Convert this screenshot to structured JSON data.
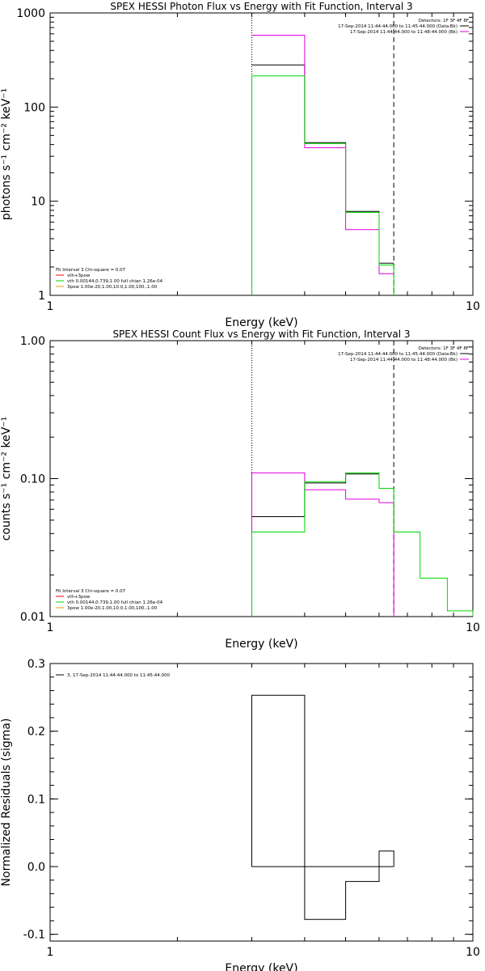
{
  "colors": {
    "black": "#000000",
    "magenta": "#e000e0",
    "green": "#00d800",
    "red": "#ff0000",
    "orange": "#e0a000"
  },
  "chart_data": [
    {
      "type": "line",
      "scale": "log-log",
      "title": "SPEX HESSI Photon Flux vs Energy with Fit Function, Interval 3",
      "xlabel": "Energy (keV)",
      "ylabel": "photons s⁻¹ cm⁻² keV⁻¹",
      "xlim": [
        1,
        10
      ],
      "ylim": [
        1,
        1000
      ],
      "xticks": [
        "1",
        "10"
      ],
      "yticks": [
        {
          "v": 1,
          "l": "1"
        },
        {
          "v": 10,
          "l": "10"
        },
        {
          "v": 100,
          "l": "100"
        },
        {
          "v": 1000,
          "l": "1000"
        }
      ],
      "vlines": [
        {
          "x": 3,
          "style": "dotted"
        },
        {
          "x": 6.5,
          "style": "dashed"
        }
      ],
      "legend_tr": {
        "header": "Detectors: 1F 3F 4F 8F",
        "items": [
          {
            "text": "17-Sep-2014 11:44:44.000 to 11:45:44.000 (Data-Bk)",
            "color": "#000000"
          },
          {
            "text": "17-Sep-2014 11:44:44.000 to 11:48:44.000 (Bk)",
            "color": "#e000e0"
          }
        ]
      },
      "legend_bl": {
        "header": "Fit Interval 3   Chi-square = 0.07",
        "items": [
          {
            "text": "vth+3pow",
            "color": "#ff0000"
          },
          {
            "text": "vth 0.00144,0.739,1.00   full chian 1.26e-04",
            "color": "#00d800"
          },
          {
            "text": "3pow 1.00e-20,1.00,10.0,1.00,100.,1.00",
            "color": "#e0a000"
          }
        ]
      },
      "series": [
        {
          "name": "Data-Bk",
          "color": "#000000",
          "edges": [
            3,
            4,
            5,
            6,
            6.5
          ],
          "values": [
            280,
            42,
            7.8,
            2.2
          ]
        },
        {
          "name": "Bk",
          "color": "#e000e0",
          "edges": [
            3,
            4,
            5,
            6,
            6.5
          ],
          "values": [
            580,
            37,
            5.0,
            1.7
          ]
        },
        {
          "name": "vth+3pow",
          "color": "#00d800",
          "edges": [
            3,
            4,
            5,
            6,
            6.5
          ],
          "values": [
            215,
            41,
            7.6,
            2.1
          ],
          "drop": true
        }
      ]
    },
    {
      "type": "line",
      "scale": "log-log",
      "title": "SPEX HESSI Count Flux vs Energy with Fit Function, Interval 3",
      "xlabel": "Energy (keV)",
      "ylabel": "counts s⁻¹ cm⁻² keV⁻¹",
      "xlim": [
        1,
        10
      ],
      "ylim": [
        0.01,
        1
      ],
      "xticks": [
        "1",
        "10"
      ],
      "yticks": [
        {
          "v": 0.01,
          "l": "0.01"
        },
        {
          "v": 0.1,
          "l": "0.10"
        },
        {
          "v": 1,
          "l": "1.00"
        }
      ],
      "vlines": [
        {
          "x": 3,
          "style": "dotted"
        },
        {
          "x": 6.5,
          "style": "dashed"
        }
      ],
      "legend_tr": {
        "header": "Detectors: 1F 3F 4F 8F",
        "items": [
          {
            "text": "17-Sep-2014 11:44:44.000 to 11:45:44.000 (Data-Bk)",
            "color": "#000000"
          },
          {
            "text": "17-Sep-2014 11:44:44.000 to 11:48:44.000 (Bk)",
            "color": "#e000e0"
          }
        ]
      },
      "legend_bl": {
        "header": "Fit Interval 3   Chi-square = 0.07",
        "items": [
          {
            "text": "vth+3pow",
            "color": "#ff0000"
          },
          {
            "text": "vth 0.00144,0.739,1.00   full chian 1.26e-04",
            "color": "#00d800"
          },
          {
            "text": "3pow 1.00e-20,1.00,10.0,1.00,100.,1.00",
            "color": "#e0a000"
          }
        ]
      },
      "series": [
        {
          "name": "Data-Bk",
          "color": "#000000",
          "edges": [
            3,
            4,
            5,
            6,
            6.5
          ],
          "values": [
            0.053,
            0.093,
            0.108,
            0.085
          ]
        },
        {
          "name": "Bk",
          "color": "#e000e0",
          "edges": [
            3,
            4,
            5,
            6,
            6.5
          ],
          "values": [
            0.11,
            0.083,
            0.071,
            0.067
          ],
          "drop": true
        },
        {
          "name": "vth+3pow",
          "color": "#00d800",
          "edges": [
            3,
            4,
            5,
            6,
            6.5,
            7.5,
            8.7,
            10
          ],
          "values": [
            0.041,
            0.095,
            0.11,
            0.085,
            0.041,
            0.019,
            0.011
          ],
          "drop": true
        }
      ]
    },
    {
      "type": "line",
      "scale": "log-x",
      "title": "",
      "xlabel": "Energy (keV)",
      "ylabel": "Normalized Residuals (sigma)",
      "xlim": [
        1,
        10
      ],
      "ylim": [
        -0.11,
        0.3
      ],
      "xticks": [
        "1",
        "10"
      ],
      "yticks": [
        {
          "v": -0.1,
          "l": "-0.1"
        },
        {
          "v": 0,
          "l": "0.0"
        },
        {
          "v": 0.1,
          "l": "0.1"
        },
        {
          "v": 0.2,
          "l": "0.2"
        },
        {
          "v": 0.3,
          "l": "0.3"
        }
      ],
      "legend_tl": {
        "items": [
          {
            "text": "3, 17-Sep-2014 11:44:44.000 to 11:45:44.000",
            "color": "#000000"
          }
        ]
      },
      "series": [
        {
          "name": "3, 17-Sep-2014 11:44:44.000 to 11:45:44.000",
          "color": "#000000",
          "edges": [
            3,
            4,
            5,
            6,
            6.5
          ],
          "values": [
            0.253,
            -0.078,
            -0.022,
            0.023
          ],
          "closed": true
        }
      ]
    }
  ]
}
